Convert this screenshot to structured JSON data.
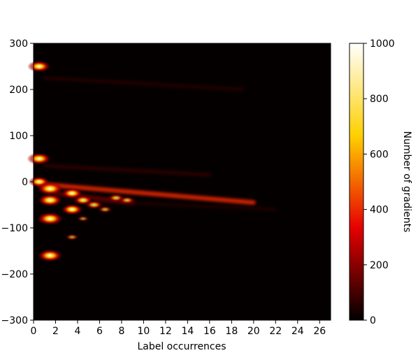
{
  "chart_data": {
    "type": "heatmap",
    "title": "",
    "xlabel": "Label occurrences",
    "ylabel": "",
    "xlim": [
      0,
      27
    ],
    "ylim": [
      -300,
      300
    ],
    "x_ticks": [
      0,
      2,
      4,
      6,
      8,
      10,
      12,
      14,
      16,
      18,
      20,
      22,
      24,
      26
    ],
    "y_ticks": [
      300,
      200,
      100,
      0,
      -100,
      -200,
      -300
    ],
    "colorbar": {
      "label": "Number of gradients",
      "range": [
        0,
        1000
      ],
      "ticks": [
        0,
        200,
        400,
        600,
        800,
        1000
      ],
      "colormap": "hot",
      "colors": [
        "#000000",
        "#e60000",
        "#ffd000",
        "#ffffff"
      ]
    },
    "hotspots": [
      {
        "x": 0.5,
        "y": 250,
        "value": 800
      },
      {
        "x": 0.5,
        "y": 50,
        "value": 850
      },
      {
        "x": 0.5,
        "y": 0,
        "value": 700
      },
      {
        "x": 1.5,
        "y": -15,
        "value": 950
      },
      {
        "x": 1.5,
        "y": -40,
        "value": 900
      },
      {
        "x": 1.5,
        "y": -80,
        "value": 950
      },
      {
        "x": 1.5,
        "y": -160,
        "value": 900
      },
      {
        "x": 3.5,
        "y": -25,
        "value": 700
      },
      {
        "x": 3.5,
        "y": -60,
        "value": 750
      },
      {
        "x": 4.5,
        "y": -40,
        "value": 600
      },
      {
        "x": 5.5,
        "y": -50,
        "value": 500
      },
      {
        "x": 3.5,
        "y": -120,
        "value": 300
      },
      {
        "x": 4.5,
        "y": -80,
        "value": 250
      },
      {
        "x": 6.5,
        "y": -60,
        "value": 350
      },
      {
        "x": 7.5,
        "y": -35,
        "value": 450
      },
      {
        "x": 8.5,
        "y": -40,
        "value": 400
      }
    ],
    "ridges": [
      {
        "x_start": 0.5,
        "y_start": -5,
        "x_end": 20,
        "y_end": -45,
        "value": 600
      },
      {
        "x_start": 2,
        "y_start": -25,
        "x_end": 9,
        "y_end": -45,
        "value": 400
      },
      {
        "x_start": 1,
        "y_start": 225,
        "x_end": 19,
        "y_end": 200,
        "value": 150
      },
      {
        "x_start": 1,
        "y_start": 35,
        "x_end": 16,
        "y_end": 15,
        "value": 200
      },
      {
        "x_start": 3,
        "y_start": -40,
        "x_end": 22,
        "y_end": -60,
        "value": 120
      }
    ]
  }
}
